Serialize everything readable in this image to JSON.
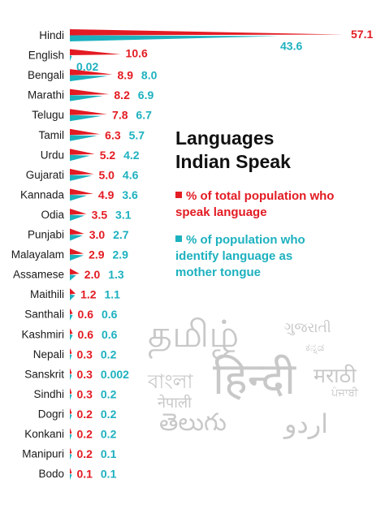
{
  "chart_data": {
    "type": "bar",
    "orientation": "horizontal",
    "title": "Languages Indian Speak",
    "categories": [
      "Hindi",
      "English",
      "Bengali",
      "Marathi",
      "Telugu",
      "Tamil",
      "Urdu",
      "Gujarati",
      "Kannada",
      "Odia",
      "Punjabi",
      "Malayalam",
      "Assamese",
      "Maithili",
      "Santhali",
      "Kashmiri",
      "Nepali",
      "Sanskrit",
      "Sindhi",
      "Dogri",
      "Konkani",
      "Manipuri",
      "Bodo"
    ],
    "series": [
      {
        "name": "% of total population who speak language",
        "color": "#e31b23",
        "values": [
          57.1,
          10.6,
          8.9,
          8.2,
          7.8,
          6.3,
          5.2,
          5.0,
          4.9,
          3.5,
          3.0,
          2.9,
          2.0,
          1.2,
          0.6,
          0.6,
          0.3,
          0.3,
          0.3,
          0.2,
          0.2,
          0.2,
          0.1
        ],
        "labels": [
          "57.1",
          "10.6",
          "8.9",
          "8.2",
          "7.8",
          "6.3",
          "5.2",
          "5.0",
          "4.9",
          "3.5",
          "3.0",
          "2.9",
          "2.0",
          "1.2",
          "0.6",
          "0.6",
          "0.3",
          "0.3",
          "0.3",
          "0.2",
          "0.2",
          "0.2",
          "0.1"
        ]
      },
      {
        "name": "% of population who identify language as mother tongue",
        "color": "#1db1bf",
        "values": [
          43.6,
          0.02,
          8.0,
          6.9,
          6.7,
          5.7,
          4.2,
          4.6,
          3.6,
          3.1,
          2.7,
          2.9,
          1.3,
          1.1,
          0.6,
          0.6,
          0.2,
          0.002,
          0.2,
          0.2,
          0.2,
          0.1,
          0.1
        ],
        "labels": [
          "43.6",
          "0.02",
          "8.0",
          "6.9",
          "6.7",
          "5.7",
          "4.2",
          "4.6",
          "3.6",
          "3.1",
          "2.7",
          "2.9",
          "1.3",
          "1.1",
          "0.6",
          "0.6",
          "0.2",
          "0.002",
          "0.2",
          "0.2",
          "0.2",
          "0.1",
          "0.1"
        ]
      }
    ],
    "xlim": [
      0,
      57.1
    ],
    "grid": false,
    "legend_position": "right"
  },
  "title_lines": [
    "Languages",
    "Indian Speak"
  ],
  "legend": [
    {
      "text_lines": [
        "% of total population who",
        "speak language"
      ],
      "color": "#e31b23"
    },
    {
      "text_lines": [
        "% of population who",
        "identify language as",
        "mother tongue"
      ],
      "color": "#1db1bf"
    }
  ],
  "decoration": {
    "scripts": [
      {
        "name": "tamil-script",
        "text": "தமிழ்"
      },
      {
        "name": "gujarati-script",
        "text": "ગુજરાતી"
      },
      {
        "name": "kannada-script",
        "text": "ಕನ್ನಡ"
      },
      {
        "name": "bangla-script",
        "text": "বাংলা"
      },
      {
        "name": "hindi-script",
        "text": "हिन्दी"
      },
      {
        "name": "marathi-script",
        "text": "मराठी"
      },
      {
        "name": "punjabi-script",
        "text": "ਪੰਜਾਬੀ"
      },
      {
        "name": "nepali-script",
        "text": "नेपाली"
      },
      {
        "name": "telugu-script",
        "text": "తెలుగు"
      },
      {
        "name": "urdu-script",
        "text": "اردو"
      }
    ]
  }
}
